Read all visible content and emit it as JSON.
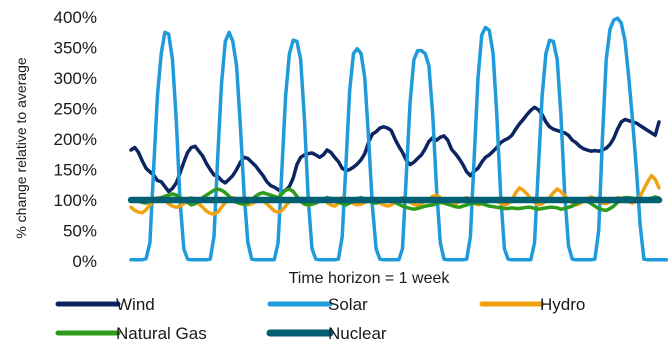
{
  "chart_data": {
    "type": "line",
    "ylabel": "% change relative to average",
    "xlabel": "Time horizon = 1 week",
    "ylim": [
      0,
      400
    ],
    "yticks": [
      "0%",
      "50%",
      "100%",
      "150%",
      "200%",
      "250%",
      "300%",
      "350%",
      "400%"
    ],
    "grid": false,
    "legend_position": "bottom",
    "x_points": 141,
    "series": [
      {
        "name": "Wind",
        "color": "#0c2461",
        "width": 3.5,
        "values": [
          182,
          186,
          178,
          164,
          152,
          146,
          141,
          132,
          130,
          122,
          114,
          119,
          128,
          144,
          162,
          178,
          186,
          188,
          180,
          172,
          160,
          150,
          141,
          139,
          132,
          128,
          134,
          140,
          150,
          162,
          170,
          168,
          162,
          156,
          148,
          140,
          130,
          124,
          121,
          117,
          113,
          116,
          122,
          136,
          158,
          170,
          174,
          176,
          177,
          174,
          170,
          174,
          182,
          178,
          170,
          163,
          152,
          148,
          150,
          154,
          159,
          166,
          176,
          195,
          208,
          212,
          218,
          220,
          218,
          214,
          200,
          188,
          178,
          165,
          158,
          162,
          168,
          174,
          184,
          196,
          202,
          198,
          203,
          205,
          198,
          183,
          176,
          168,
          158,
          146,
          140,
          147,
          152,
          162,
          170,
          174,
          180,
          186,
          194,
          198,
          201,
          206,
          216,
          225,
          232,
          240,
          247,
          252,
          248,
          240,
          228,
          220,
          216,
          214,
          212,
          210,
          206,
          198,
          194,
          188,
          184,
          182,
          180,
          181,
          180,
          182,
          185,
          191,
          201,
          216,
          228,
          232,
          230,
          228,
          226,
          222,
          218,
          214,
          210,
          206,
          228
        ]
      },
      {
        "name": "Solar",
        "color": "#1f9bdb",
        "width": 3.5,
        "values": [
          2,
          2,
          2,
          2,
          4,
          30,
          150,
          270,
          340,
          375,
          372,
          330,
          230,
          100,
          20,
          3,
          2,
          2,
          2,
          2,
          2,
          3,
          40,
          170,
          290,
          360,
          375,
          360,
          320,
          220,
          110,
          30,
          3,
          2,
          2,
          2,
          2,
          2,
          2,
          30,
          150,
          270,
          340,
          362,
          360,
          330,
          230,
          100,
          20,
          3,
          2,
          2,
          2,
          2,
          2,
          3,
          40,
          160,
          280,
          340,
          348,
          340,
          300,
          200,
          90,
          20,
          3,
          2,
          2,
          2,
          2,
          2,
          20,
          140,
          260,
          330,
          345,
          345,
          340,
          320,
          240,
          120,
          30,
          3,
          2,
          2,
          2,
          2,
          2,
          3,
          40,
          170,
          300,
          370,
          383,
          378,
          340,
          240,
          110,
          20,
          3,
          2,
          2,
          2,
          2,
          2,
          2,
          30,
          150,
          270,
          340,
          362,
          360,
          330,
          240,
          110,
          25,
          3,
          2,
          2,
          2,
          2,
          2,
          3,
          50,
          200,
          330,
          380,
          395,
          398,
          390,
          360,
          300,
          230,
          150,
          60,
          3,
          2,
          2,
          2,
          2,
          2,
          2
        ]
      },
      {
        "name": "Hydro",
        "color": "#f2a20f",
        "width": 3.5,
        "values": [
          88,
          83,
          80,
          79,
          84,
          92,
          100,
          104,
          102,
          98,
          94,
          90,
          88,
          90,
          94,
          100,
          104,
          100,
          94,
          88,
          82,
          78,
          77,
          80,
          88,
          96,
          102,
          104,
          101,
          98,
          94,
          92,
          94,
          97,
          100,
          98,
          94,
          88,
          82,
          80,
          83,
          90,
          98,
          102,
          100,
          97,
          94,
          91,
          93,
          97,
          100,
          100,
          96,
          92,
          90,
          95,
          104,
          102,
          98,
          94,
          92,
          93,
          96,
          100,
          102,
          99,
          95,
          92,
          90,
          92,
          96,
          100,
          104,
          100,
          96,
          93,
          91,
          94,
          98,
          102,
          106,
          108,
          104,
          98,
          94,
          91,
          93,
          97,
          102,
          104,
          100,
          95,
          92,
          94,
          97,
          100,
          101,
          98,
          95,
          92,
          94,
          100,
          112,
          120,
          116,
          110,
          102,
          96,
          92,
          94,
          98,
          104,
          112,
          118,
          114,
          107,
          100,
          95,
          92,
          94,
          98,
          102,
          105,
          102,
          98,
          95,
          94,
          97,
          101,
          104,
          103,
          100,
          97,
          95,
          98,
          106,
          118,
          130,
          140,
          134,
          120
        ]
      },
      {
        "name": "Natural Gas",
        "color": "#2e9c1a",
        "width": 3.5,
        "values": [
          102,
          100,
          98,
          96,
          95,
          98,
          100,
          102,
          104,
          106,
          108,
          110,
          108,
          104,
          100,
          96,
          92,
          94,
          98,
          104,
          108,
          112,
          116,
          118,
          116,
          112,
          106,
          100,
          96,
          94,
          93,
          95,
          100,
          106,
          110,
          112,
          110,
          108,
          106,
          104,
          110,
          116,
          118,
          114,
          106,
          98,
          93,
          92,
          93,
          95,
          98,
          101,
          104,
          102,
          99,
          96,
          94,
          92,
          95,
          98,
          102,
          104,
          101,
          99,
          96,
          95,
          97,
          100,
          102,
          100,
          96,
          93,
          90,
          88,
          86,
          85,
          86,
          88,
          90,
          91,
          92,
          94,
          96,
          95,
          93,
          91,
          89,
          88,
          90,
          92,
          94,
          95,
          95,
          94,
          92,
          90,
          89,
          88,
          87,
          86,
          86,
          87,
          86,
          86,
          87,
          88,
          88,
          86,
          85,
          86,
          87,
          88,
          88,
          87,
          85,
          86,
          88,
          90,
          94,
          97,
          100,
          98,
          94,
          90,
          86,
          84,
          83,
          86,
          90,
          96,
          102,
          104,
          104,
          103,
          102,
          100,
          99,
          101,
          103,
          105,
          103
        ]
      },
      {
        "name": "Nuclear",
        "color": "#005f73",
        "width": 6.5,
        "values": [
          100,
          100,
          100,
          100,
          100,
          100,
          100,
          100,
          100,
          100,
          100,
          100,
          100,
          100,
          100,
          100,
          100,
          100,
          100,
          100,
          100,
          100,
          100,
          100,
          100,
          100,
          100,
          100,
          100,
          100,
          100,
          100,
          100,
          100,
          100,
          100,
          100,
          100,
          100,
          100,
          100,
          100,
          100,
          100,
          100,
          100,
          100,
          100,
          100,
          100,
          100,
          100,
          100,
          100,
          100,
          100,
          100,
          100,
          100,
          100,
          100,
          100,
          100,
          100,
          100,
          100,
          100,
          100,
          100,
          100,
          100,
          100,
          100,
          100,
          100,
          100,
          100,
          100,
          100,
          100,
          100,
          100,
          100,
          100,
          100,
          100,
          100,
          100,
          100,
          100,
          100,
          100,
          100,
          100,
          100,
          100,
          100,
          100,
          100,
          100,
          100,
          100,
          100,
          100,
          100,
          100,
          100,
          100,
          100,
          100,
          100,
          100,
          100,
          100,
          100,
          100,
          100,
          100,
          100,
          100,
          100,
          100,
          100,
          100,
          100,
          100,
          100,
          100,
          100,
          100,
          100,
          100,
          100,
          100,
          100,
          100,
          100,
          100,
          100,
          100,
          100
        ]
      }
    ]
  }
}
